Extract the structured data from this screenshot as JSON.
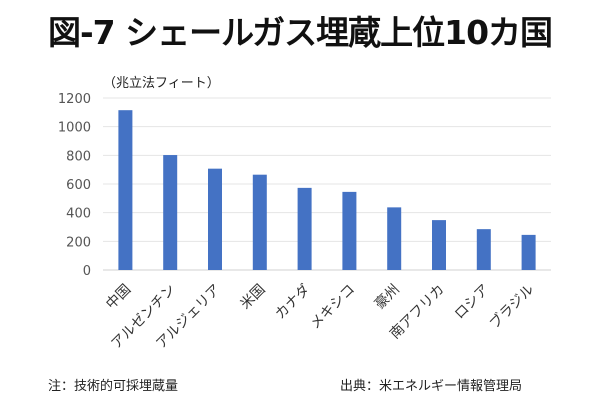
{
  "chart_data": {
    "type": "bar",
    "title": "図-7 シェールガス埋蔵上位10カ国",
    "ylabel": "（兆立法フィート）",
    "xlabel": "",
    "categories": [
      "中国",
      "アルゼンチン",
      "アルジェリア",
      "米国",
      "カナダ",
      "メキシコ",
      "豪州",
      "南アフリカ",
      "ロシア",
      "ブラジル"
    ],
    "values": [
      1115,
      802,
      707,
      665,
      573,
      545,
      437,
      348,
      285,
      245
    ],
    "ylim": [
      0,
      1200
    ],
    "yticks": [
      "0",
      "200",
      "400",
      "600",
      "800",
      "1000",
      "1200"
    ],
    "grid": true,
    "color": "#4472C4",
    "note": "注：技術的可採埋蔵量",
    "source": "出典：米エネルギー情報管理局"
  }
}
